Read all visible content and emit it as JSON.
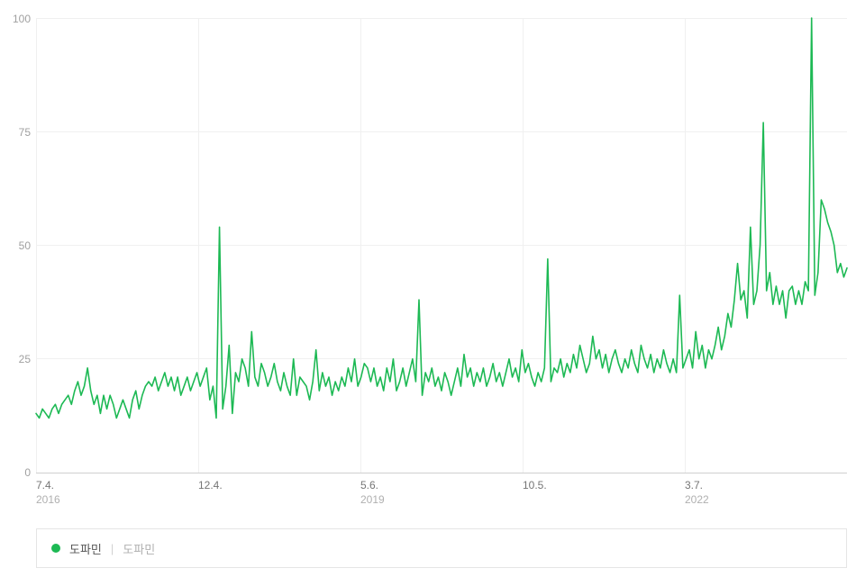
{
  "chart": {
    "type": "line",
    "background_color": "#ffffff",
    "grid_color": "#f0f0f0",
    "baseline_color": "#d0d0d0",
    "axis_label_color": "#a0a0a0",
    "x_label_top_color": "#757575",
    "x_label_bottom_color": "#b0b0b0",
    "line_color": "#1db954",
    "line_width": 1.6,
    "ylim": [
      0,
      100
    ],
    "ytick_step": 25,
    "y_ticks": [
      "0",
      "25",
      "50",
      "75",
      "100"
    ],
    "x_ticks": [
      {
        "top": "7.4.",
        "bottom": "2016",
        "pos": 0.0
      },
      {
        "top": "12.4.",
        "bottom": "",
        "pos": 0.2
      },
      {
        "top": "5.6.",
        "bottom": "2019",
        "pos": 0.4
      },
      {
        "top": "10.5.",
        "bottom": "",
        "pos": 0.6
      },
      {
        "top": "3.7.",
        "bottom": "2022",
        "pos": 0.8
      }
    ],
    "label_fontsize": 12,
    "values": [
      13,
      12,
      14,
      13,
      12,
      14,
      15,
      13,
      15,
      16,
      17,
      15,
      18,
      20,
      17,
      19,
      23,
      18,
      15,
      17,
      13,
      17,
      14,
      17,
      15,
      12,
      14,
      16,
      14,
      12,
      16,
      18,
      14,
      17,
      19,
      20,
      19,
      21,
      18,
      20,
      22,
      19,
      21,
      18,
      21,
      17,
      19,
      21,
      18,
      20,
      22,
      19,
      21,
      23,
      16,
      19,
      12,
      54,
      14,
      19,
      28,
      13,
      22,
      20,
      25,
      23,
      19,
      31,
      21,
      19,
      24,
      22,
      19,
      21,
      24,
      20,
      18,
      22,
      19,
      17,
      25,
      17,
      21,
      20,
      19,
      16,
      20,
      27,
      18,
      22,
      19,
      21,
      17,
      20,
      18,
      21,
      19,
      23,
      20,
      25,
      19,
      21,
      24,
      23,
      20,
      23,
      19,
      21,
      18,
      23,
      20,
      25,
      18,
      20,
      23,
      19,
      22,
      25,
      20,
      38,
      17,
      22,
      20,
      23,
      19,
      21,
      18,
      22,
      20,
      17,
      20,
      23,
      19,
      26,
      21,
      23,
      19,
      22,
      20,
      23,
      19,
      21,
      24,
      20,
      22,
      19,
      22,
      25,
      21,
      23,
      20,
      27,
      22,
      24,
      21,
      19,
      22,
      20,
      23,
      47,
      20,
      23,
      22,
      25,
      21,
      24,
      22,
      26,
      23,
      28,
      25,
      22,
      24,
      30,
      25,
      27,
      23,
      26,
      22,
      25,
      27,
      24,
      22,
      25,
      23,
      27,
      24,
      22,
      28,
      25,
      23,
      26,
      22,
      25,
      23,
      27,
      24,
      22,
      25,
      22,
      39,
      23,
      25,
      27,
      23,
      31,
      25,
      28,
      23,
      27,
      25,
      28,
      32,
      27,
      30,
      35,
      32,
      38,
      46,
      38,
      40,
      34,
      54,
      37,
      40,
      50,
      77,
      40,
      44,
      37,
      41,
      37,
      40,
      34,
      40,
      41,
      37,
      40,
      37,
      42,
      40,
      100,
      39,
      44,
      60,
      58,
      55,
      53,
      50,
      44,
      46,
      43,
      45
    ]
  },
  "legend": {
    "dot_color": "#1db954",
    "primary_label": "도파민",
    "separator": "|",
    "secondary_label": "도파민"
  }
}
